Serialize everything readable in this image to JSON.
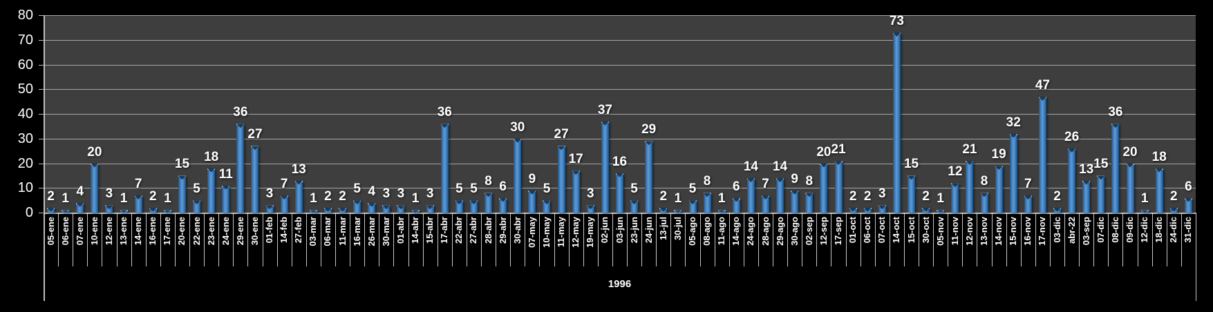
{
  "chart_data": {
    "type": "bar",
    "title": "",
    "xlabel": "1996",
    "ylabel": "",
    "ylim": [
      0,
      80
    ],
    "y_ticks": [
      0,
      10,
      20,
      30,
      40,
      50,
      60,
      70,
      80
    ],
    "grid": true,
    "legend": false,
    "data_labels": true,
    "categories": [
      "05-ene",
      "06-ene",
      "07-ene",
      "10-ene",
      "12-ene",
      "13-ene",
      "14-ene",
      "16-ene",
      "17-ene",
      "20-ene",
      "22-ene",
      "23-ene",
      "24-ene",
      "29-ene",
      "30-ene",
      "01-feb",
      "14-feb",
      "27-feb",
      "03-mar",
      "06-mar",
      "11-mar",
      "16-mar",
      "26-mar",
      "30-mar",
      "01-abr",
      "14-abr",
      "15-abr",
      "17-abr",
      "22-abr",
      "27-abr",
      "28-abr",
      "29-abr",
      "30-abr",
      "07-may",
      "10-may",
      "11-may",
      "12-may",
      "19-may",
      "02-jun",
      "03-jun",
      "23-jun",
      "24-jun",
      "13-jul",
      "30-jul",
      "05-ago",
      "08-ago",
      "11-ago",
      "14-ago",
      "24-ago",
      "28-ago",
      "29-ago",
      "30-ago",
      "02-sep",
      "12-sep",
      "17-sep",
      "01-oct",
      "06-oct",
      "07-oct",
      "14-oct",
      "15-oct",
      "30-oct",
      "05-nov",
      "11-nov",
      "12-nov",
      "13-nov",
      "14-nov",
      "15-nov",
      "16-nov",
      "17-nov",
      "03-dic",
      "abr-22",
      "03-sep",
      "07-dic",
      "08-dic",
      "09-dic",
      "12-dic",
      "18-dic",
      "24-dic",
      "31-dic"
    ],
    "values": [
      2,
      1,
      4,
      20,
      3,
      1,
      7,
      2,
      1,
      15,
      5,
      18,
      11,
      36,
      27,
      3,
      7,
      13,
      1,
      2,
      2,
      5,
      4,
      3,
      3,
      1,
      3,
      36,
      5,
      5,
      8,
      6,
      30,
      9,
      5,
      27,
      17,
      3,
      37,
      16,
      5,
      29,
      2,
      1,
      5,
      8,
      1,
      6,
      14,
      7,
      14,
      9,
      8,
      20,
      21,
      2,
      2,
      3,
      73,
      15,
      2,
      1,
      12,
      21,
      8,
      19,
      32,
      7,
      47,
      2,
      26,
      13,
      15,
      36,
      20,
      1,
      18,
      2,
      6
    ],
    "colors": {
      "page_background": "#000000",
      "plot_background": "#3E3E3E",
      "gridline": "#A6A6A6",
      "axis_line": "#BFBFBF",
      "bar_body": "#4F8DCB",
      "bar_edge": "#24537F",
      "bar_cap": "#16395C",
      "text": "#FFFFFF"
    }
  }
}
